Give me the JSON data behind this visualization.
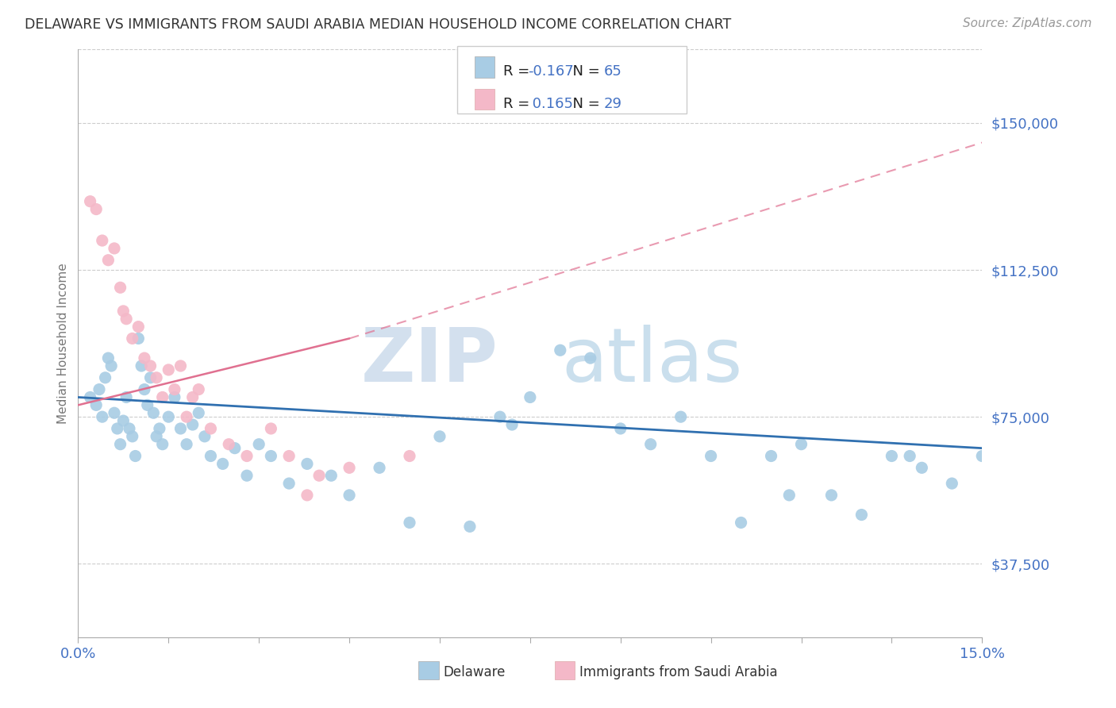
{
  "title": "DELAWARE VS IMMIGRANTS FROM SAUDI ARABIA MEDIAN HOUSEHOLD INCOME CORRELATION CHART",
  "source_text": "Source: ZipAtlas.com",
  "ylabel": "Median Household Income",
  "watermark": "ZIPatlas",
  "xmin": 0.0,
  "xmax": 15.0,
  "ymin": 18750,
  "ymax": 168750,
  "yticks": [
    37500,
    75000,
    112500,
    150000
  ],
  "ytick_labels": [
    "$37,500",
    "$75,000",
    "$112,500",
    "$150,000"
  ],
  "xticks": [
    0.0,
    1.5,
    3.0,
    4.5,
    6.0,
    7.5,
    9.0,
    10.5,
    12.0,
    13.5,
    15.0
  ],
  "blue_color": "#a8cce4",
  "pink_color": "#f4b8c8",
  "blue_line_color": "#3070b0",
  "pink_line_color": "#e07090",
  "label_color": "#4472c4",
  "axis_color": "#4472c4",
  "R1": "-0.167",
  "N1": "65",
  "R2": "0.165",
  "N2": "29",
  "blue_scatter_x": [
    0.2,
    0.3,
    0.35,
    0.4,
    0.45,
    0.5,
    0.55,
    0.6,
    0.65,
    0.7,
    0.75,
    0.8,
    0.85,
    0.9,
    0.95,
    1.0,
    1.05,
    1.1,
    1.15,
    1.2,
    1.25,
    1.3,
    1.35,
    1.4,
    1.5,
    1.6,
    1.7,
    1.8,
    1.9,
    2.0,
    2.1,
    2.2,
    2.4,
    2.6,
    2.8,
    3.0,
    3.2,
    3.5,
    3.8,
    4.2,
    4.5,
    5.0,
    5.5,
    6.5,
    7.0,
    7.5,
    8.0,
    9.0,
    10.0,
    11.0,
    11.5,
    12.0,
    12.5,
    13.0,
    13.5,
    14.0,
    14.5,
    15.0,
    6.0,
    8.5,
    9.5,
    10.5,
    11.8,
    13.8,
    7.2
  ],
  "blue_scatter_y": [
    80000,
    78000,
    82000,
    75000,
    85000,
    90000,
    88000,
    76000,
    72000,
    68000,
    74000,
    80000,
    72000,
    70000,
    65000,
    95000,
    88000,
    82000,
    78000,
    85000,
    76000,
    70000,
    72000,
    68000,
    75000,
    80000,
    72000,
    68000,
    73000,
    76000,
    70000,
    65000,
    63000,
    67000,
    60000,
    68000,
    65000,
    58000,
    63000,
    60000,
    55000,
    62000,
    48000,
    47000,
    75000,
    80000,
    92000,
    72000,
    75000,
    48000,
    65000,
    68000,
    55000,
    50000,
    65000,
    62000,
    58000,
    65000,
    70000,
    90000,
    68000,
    65000,
    55000,
    65000,
    73000
  ],
  "pink_scatter_x": [
    0.2,
    0.3,
    0.4,
    0.5,
    0.6,
    0.7,
    0.75,
    0.8,
    0.9,
    1.0,
    1.1,
    1.2,
    1.3,
    1.4,
    1.5,
    1.6,
    1.7,
    1.8,
    1.9,
    2.0,
    2.2,
    2.5,
    2.8,
    3.2,
    3.5,
    4.0,
    4.5,
    5.5,
    3.8
  ],
  "pink_scatter_y": [
    130000,
    128000,
    120000,
    115000,
    118000,
    108000,
    102000,
    100000,
    95000,
    98000,
    90000,
    88000,
    85000,
    80000,
    87000,
    82000,
    88000,
    75000,
    80000,
    82000,
    72000,
    68000,
    65000,
    72000,
    65000,
    60000,
    62000,
    65000,
    55000
  ],
  "blue_trend_x0": 0.0,
  "blue_trend_x1": 15.0,
  "blue_trend_y0": 80000,
  "blue_trend_y1": 67000,
  "pink_solid_x0": 0.0,
  "pink_solid_x1": 4.5,
  "pink_solid_y0": 78000,
  "pink_solid_y1": 95000,
  "pink_dash_x0": 4.5,
  "pink_dash_x1": 15.0,
  "pink_dash_y0": 95000,
  "pink_dash_y1": 145000
}
